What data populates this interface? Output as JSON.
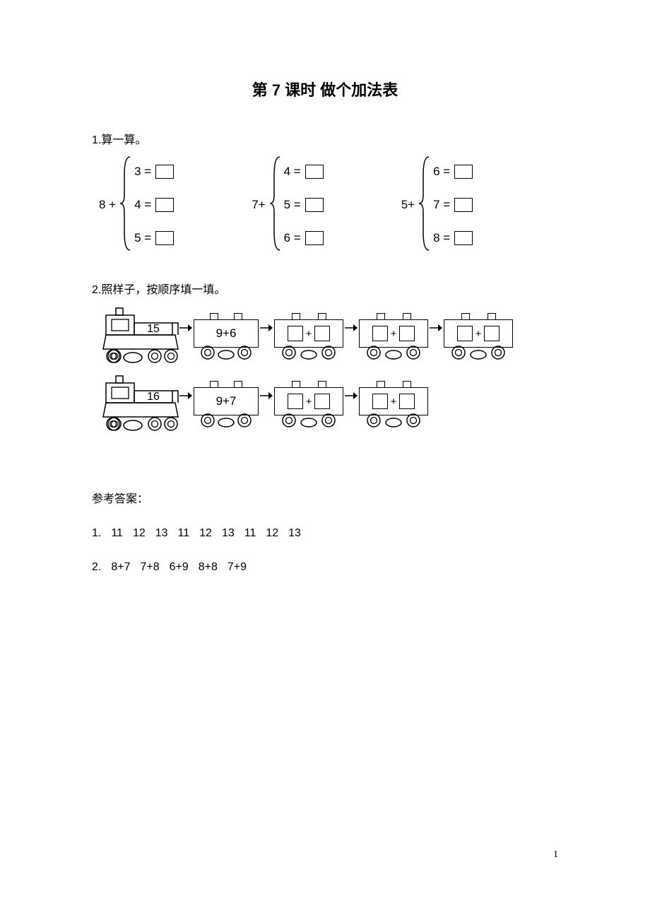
{
  "title": "第 7 课时  做个加法表",
  "q1": {
    "heading": "1.算一算。",
    "groups": [
      {
        "base": "8 +",
        "addends": [
          "3",
          "4",
          "5"
        ]
      },
      {
        "base": "7+",
        "addends": [
          "4",
          "5",
          "6"
        ]
      },
      {
        "base": "5+",
        "addends": [
          "6",
          "7",
          "8"
        ]
      }
    ]
  },
  "q2": {
    "heading": "2.照样子，按顺序填一填。",
    "trains": [
      {
        "engine_label": "15",
        "cars": [
          {
            "type": "text",
            "value": "9+6"
          },
          {
            "type": "blank_plus"
          },
          {
            "type": "blank_plus"
          },
          {
            "type": "blank_plus"
          }
        ]
      },
      {
        "engine_label": "16",
        "cars": [
          {
            "type": "text",
            "value": "9+7"
          },
          {
            "type": "blank_plus"
          },
          {
            "type": "blank_plus"
          }
        ]
      }
    ]
  },
  "answers": {
    "heading": "参考答案：",
    "line1_label": "1.",
    "line1": [
      "11",
      "12",
      "13",
      "11",
      "12",
      "13",
      "11",
      "12",
      "13"
    ],
    "line2_label": "2.",
    "line2": [
      "8+7",
      "7+8",
      "6+9",
      "8+8",
      "7+9"
    ]
  },
  "page_number": "1",
  "colors": {
    "stroke": "#000000",
    "bg": "#ffffff"
  }
}
